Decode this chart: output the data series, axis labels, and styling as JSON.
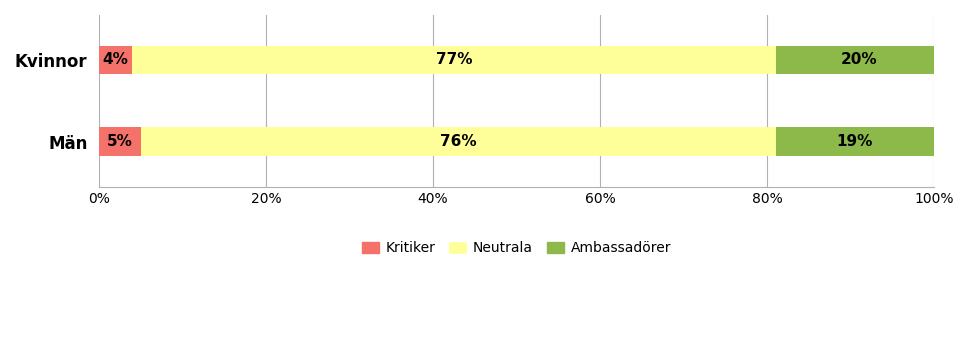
{
  "categories": [
    "Män",
    "Kvinnor"
  ],
  "kritiker": [
    5,
    4
  ],
  "neutrala": [
    76,
    77
  ],
  "ambassadorer": [
    19,
    20
  ],
  "colors": {
    "kritiker": "#F4726A",
    "neutrala": "#FFFF99",
    "ambassadorer": "#8DB84A"
  },
  "legend_labels": [
    "Kritiker",
    "Neutrala",
    "Ambassadörer"
  ],
  "xlim": [
    0,
    100
  ],
  "xtick_labels": [
    "0%",
    "20%",
    "40%",
    "60%",
    "80%",
    "100%"
  ],
  "xtick_positions": [
    0,
    20,
    40,
    60,
    80,
    100
  ],
  "bar_label_fontsize": 11,
  "bar_height": 0.35,
  "background_color": "#ffffff",
  "grid_color": "#b0b0b0"
}
